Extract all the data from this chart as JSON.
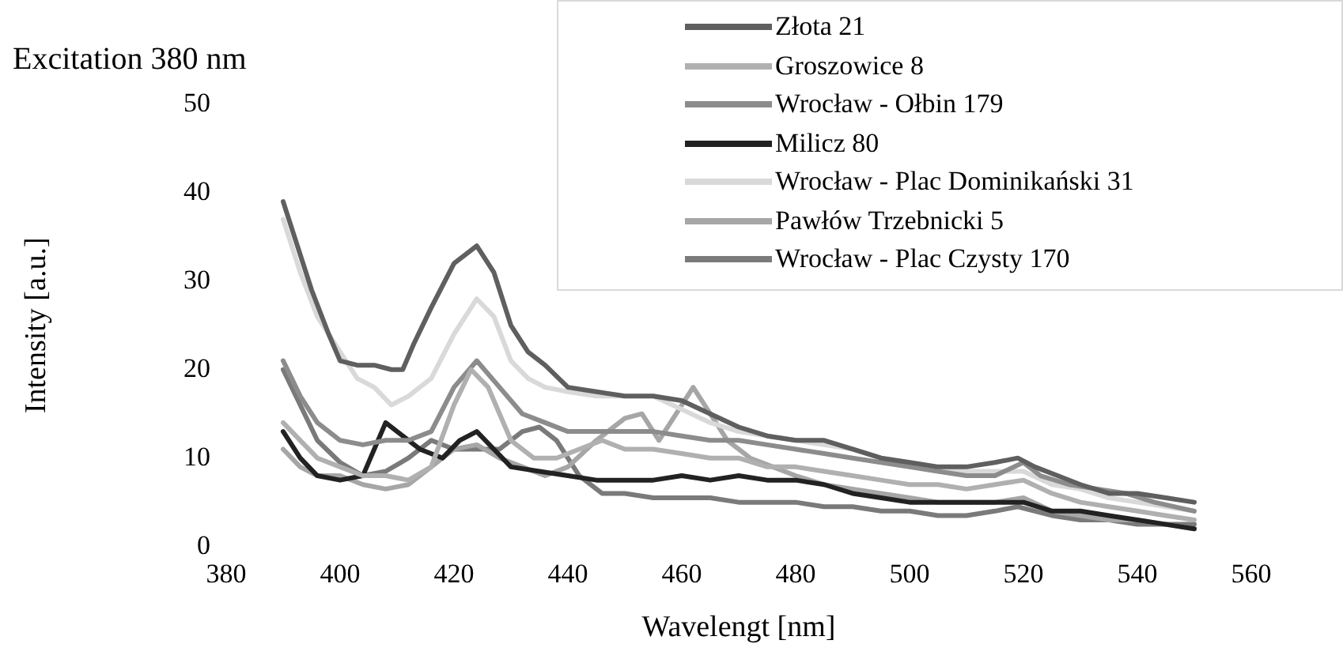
{
  "chart_data": {
    "type": "line",
    "title": "Excitation 380 nm",
    "xlabel": "Wavelengt [nm]",
    "ylabel": "Intensity [a.u.]",
    "xlim": [
      380,
      560
    ],
    "xticks": [
      380,
      400,
      420,
      440,
      460,
      480,
      500,
      520,
      540,
      560
    ],
    "ylim": [
      0,
      50
    ],
    "yticks": [
      0,
      10,
      20,
      30,
      40,
      50
    ],
    "grid": false,
    "legend": "top right",
    "marker": "none",
    "line_style": "solid",
    "series": [
      {
        "name": "Złota 21",
        "color": "#5f5f5f",
        "x": [
          390,
          392,
          395,
          398,
          400,
          403,
          406,
          409,
          411,
          413,
          416,
          420,
          424,
          427,
          430,
          433,
          436,
          440,
          445,
          450,
          455,
          460,
          465,
          470,
          475,
          480,
          485,
          490,
          495,
          500,
          505,
          510,
          515,
          519,
          522,
          526,
          530,
          535,
          540,
          545,
          550
        ],
        "values": [
          39,
          35,
          29,
          24,
          21,
          20.5,
          20.5,
          20,
          20,
          23,
          27,
          32,
          34,
          31,
          25,
          22,
          20.5,
          18,
          17.5,
          17,
          17,
          16.5,
          15,
          13.5,
          12.5,
          12,
          12,
          11,
          10,
          9.5,
          9,
          9,
          9.5,
          10,
          9,
          8,
          7,
          6,
          6,
          5.5,
          5
        ]
      },
      {
        "name": "Groszowice 8",
        "color": "#b0b0b0",
        "x": [
          390,
          393,
          396,
          400,
          404,
          408,
          412,
          416,
          420,
          423,
          426,
          430,
          434,
          438,
          442,
          446,
          450,
          455,
          460,
          465,
          470,
          475,
          480,
          485,
          490,
          495,
          500,
          505,
          510,
          515,
          520,
          525,
          530,
          535,
          540,
          545,
          550
        ],
        "values": [
          14,
          12,
          10,
          9,
          8,
          8,
          7.5,
          9,
          16,
          20,
          18,
          12,
          10,
          10,
          11,
          12,
          11,
          11,
          10.5,
          10,
          10,
          9,
          9,
          8.5,
          8,
          7.5,
          7,
          7,
          6.5,
          7,
          7.5,
          6,
          5,
          4.5,
          4,
          3.5,
          3
        ]
      },
      {
        "name": "Wrocław - Ołbin 179",
        "color": "#8c8c8c",
        "x": [
          390,
          393,
          396,
          400,
          404,
          408,
          412,
          416,
          420,
          424,
          428,
          432,
          436,
          440,
          445,
          450,
          455,
          460,
          465,
          470,
          475,
          480,
          485,
          490,
          495,
          500,
          505,
          510,
          515,
          520,
          523,
          528,
          533,
          538,
          543,
          550
        ],
        "values": [
          21,
          17,
          14,
          12,
          11.5,
          12,
          12,
          13,
          18,
          21,
          18,
          15,
          14,
          13,
          13,
          13,
          13,
          12.5,
          12,
          12,
          11.5,
          11,
          10.5,
          10,
          9.5,
          9,
          8.5,
          8,
          8,
          9.5,
          8,
          7,
          6.5,
          6,
          5,
          4
        ]
      },
      {
        "name": "Milicz 80",
        "color": "#222222",
        "x": [
          390,
          393,
          396,
          400,
          404,
          408,
          411,
          414,
          418,
          421,
          424,
          427,
          430,
          435,
          440,
          445,
          450,
          455,
          460,
          465,
          470,
          475,
          480,
          485,
          490,
          495,
          500,
          505,
          510,
          515,
          520,
          525,
          530,
          535,
          540,
          545,
          550
        ],
        "values": [
          13,
          10,
          8,
          7.5,
          8,
          14,
          12.5,
          11,
          10,
          12,
          13,
          11,
          9,
          8.5,
          8,
          7.5,
          7.5,
          7.5,
          8,
          7.5,
          8,
          7.5,
          7.5,
          7,
          6,
          5.5,
          5,
          5,
          5,
          5,
          5,
          4,
          4,
          3.5,
          3,
          2.5,
          2
        ]
      },
      {
        "name": "Wrocław - Plac Dominikański 31",
        "color": "#d9d9d9",
        "x": [
          390,
          393,
          396,
          400,
          403,
          406,
          409,
          412,
          416,
          420,
          424,
          427,
          430,
          433,
          436,
          440,
          445,
          450,
          455,
          460,
          465,
          470,
          475,
          480,
          485,
          490,
          495,
          500,
          505,
          510,
          515,
          520,
          525,
          530,
          535,
          540,
          545,
          550
        ],
        "values": [
          37,
          31,
          26,
          22,
          19,
          18,
          16,
          17,
          19,
          24,
          28,
          26,
          21,
          19,
          18,
          17.5,
          17,
          17,
          17,
          15.5,
          14,
          13,
          12.5,
          12,
          11.5,
          11,
          10,
          9.5,
          9,
          8.5,
          8.5,
          8.5,
          7,
          6.5,
          5.5,
          5,
          4.5,
          4
        ]
      },
      {
        "name": "Pawłów Trzebnicki 5",
        "color": "#a6a6a6",
        "x": [
          390,
          393,
          396,
          400,
          404,
          408,
          412,
          416,
          420,
          424,
          428,
          432,
          436,
          440,
          445,
          450,
          453,
          456,
          460,
          462,
          465,
          468,
          472,
          476,
          480,
          485,
          490,
          495,
          500,
          505,
          510,
          515,
          520,
          525,
          530,
          535,
          540,
          545,
          550
        ],
        "values": [
          11,
          9,
          8,
          8,
          7,
          6.5,
          7,
          9,
          11,
          11.5,
          10,
          9,
          8,
          9,
          12,
          14.5,
          15,
          12,
          16,
          18,
          15,
          12,
          10,
          9,
          8,
          7,
          6.5,
          6,
          5.5,
          5,
          5,
          5,
          5.5,
          4,
          3.5,
          3,
          3,
          2.5,
          2
        ]
      },
      {
        "name": "Wrocław - Plac Czysty 170",
        "color": "#7a7a7a",
        "x": [
          390,
          393,
          396,
          400,
          404,
          408,
          412,
          416,
          420,
          424,
          428,
          432,
          435,
          438,
          442,
          446,
          450,
          455,
          460,
          465,
          470,
          475,
          480,
          485,
          490,
          495,
          500,
          505,
          510,
          515,
          519,
          525,
          530,
          535,
          540,
          545,
          550
        ],
        "values": [
          20,
          16,
          12,
          9.5,
          8,
          8.5,
          10,
          12,
          11,
          11,
          11,
          13,
          13.5,
          12,
          8,
          6,
          6,
          5.5,
          5.5,
          5.5,
          5,
          5,
          5,
          4.5,
          4.5,
          4,
          4,
          3.5,
          3.5,
          4,
          4.5,
          3.5,
          3,
          3,
          2.5,
          2.5,
          2.5
        ]
      }
    ]
  }
}
